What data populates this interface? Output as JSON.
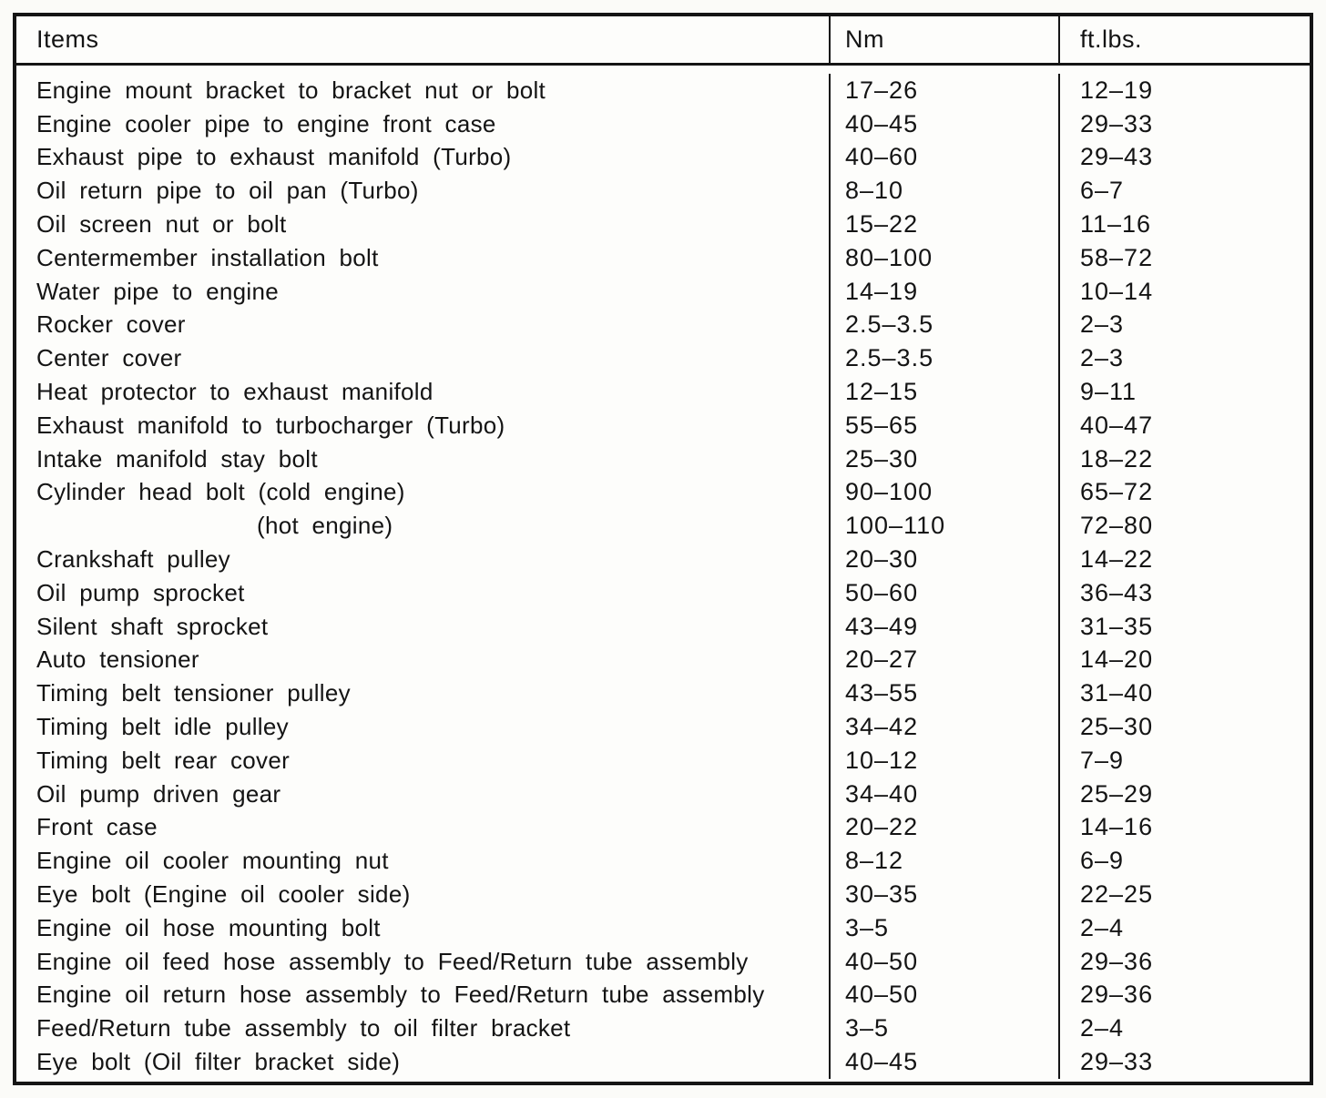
{
  "colors": {
    "background": "#fbfbf8",
    "table_background": "#fdfdfb",
    "border": "#151515",
    "text": "#141414"
  },
  "table": {
    "headers": {
      "items": "Items",
      "nm": "Nm",
      "ftlbs": "ft.lbs."
    },
    "rows": [
      {
        "item": "Engine mount bracket to bracket nut or bolt",
        "nm": "17–26",
        "ftlbs": "12–19"
      },
      {
        "item": "Engine cooler pipe to engine front case",
        "nm": "40–45",
        "ftlbs": "29–33"
      },
      {
        "item": "Exhaust pipe to exhaust manifold (Turbo)",
        "nm": "40–60",
        "ftlbs": "29–43"
      },
      {
        "item": "Oil return pipe to oil pan (Turbo)",
        "nm": "8–10",
        "ftlbs": "6–7"
      },
      {
        "item": "Oil screen nut or bolt",
        "nm": "15–22",
        "ftlbs": "11–16"
      },
      {
        "item": "Centermember installation bolt",
        "nm": "80–100",
        "ftlbs": "58–72"
      },
      {
        "item": "Water pipe to engine",
        "nm": "14–19",
        "ftlbs": "10–14"
      },
      {
        "item": "Rocker cover",
        "nm": "2.5–3.5",
        "ftlbs": "2–3"
      },
      {
        "item": "Center cover",
        "nm": "2.5–3.5",
        "ftlbs": "2–3"
      },
      {
        "item": "Heat protector to exhaust manifold",
        "nm": "12–15",
        "ftlbs": "9–11"
      },
      {
        "item": "Exhaust manifold to turbocharger (Turbo)",
        "nm": "55–65",
        "ftlbs": "40–47"
      },
      {
        "item": "Intake manifold stay bolt",
        "nm": "25–30",
        "ftlbs": "18–22"
      },
      {
        "item": "Cylinder head bolt (cold engine)",
        "nm": "90–100",
        "ftlbs": "65–72"
      },
      {
        "item": "(hot engine)",
        "indent": true,
        "nm": "100–110",
        "ftlbs": "72–80"
      },
      {
        "item": "Crankshaft pulley",
        "nm": "20–30",
        "ftlbs": "14–22"
      },
      {
        "item": "Oil pump sprocket",
        "nm": "50–60",
        "ftlbs": "36–43"
      },
      {
        "item": "Silent shaft sprocket",
        "nm": "43–49",
        "ftlbs": "31–35"
      },
      {
        "item": "Auto tensioner",
        "nm": "20–27",
        "ftlbs": "14–20"
      },
      {
        "item": "Timing belt tensioner pulley",
        "nm": "43–55",
        "ftlbs": "31–40"
      },
      {
        "item": "Timing belt idle pulley",
        "nm": "34–42",
        "ftlbs": "25–30"
      },
      {
        "item": "Timing belt rear cover",
        "nm": "10–12",
        "ftlbs": "7–9"
      },
      {
        "item": "Oil pump driven gear",
        "nm": "34–40",
        "ftlbs": "25–29"
      },
      {
        "item": "Front case",
        "nm": "20–22",
        "ftlbs": "14–16"
      },
      {
        "item": "Engine oil cooler mounting nut",
        "nm": "8–12",
        "ftlbs": "6–9"
      },
      {
        "item": "Eye bolt (Engine oil cooler side)",
        "nm": "30–35",
        "ftlbs": "22–25"
      },
      {
        "item": "Engine oil hose mounting bolt",
        "nm": "3–5",
        "ftlbs": "2–4"
      },
      {
        "item": "Engine oil feed hose assembly to Feed/Return tube assembly",
        "nm": "40–50",
        "ftlbs": "29–36"
      },
      {
        "item": "Engine oil return hose assembly to Feed/Return tube assembly",
        "nm": "40–50",
        "ftlbs": "29–36"
      },
      {
        "item": "Feed/Return tube assembly to oil filter bracket",
        "nm": "3–5",
        "ftlbs": "2–4"
      },
      {
        "item": "Eye bolt (Oil filter bracket side)",
        "nm": "40–45",
        "ftlbs": "29–33"
      }
    ]
  }
}
